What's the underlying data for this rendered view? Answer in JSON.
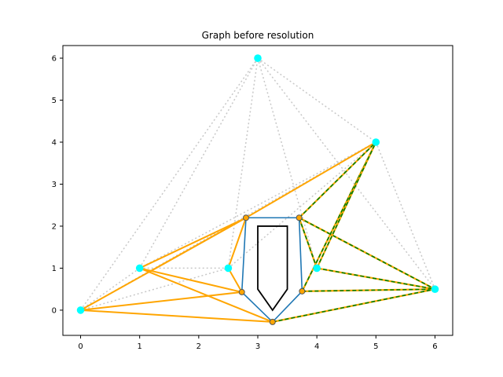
{
  "chart_data": {
    "type": "scatter",
    "title": "Graph before resolution",
    "xlabel": "",
    "ylabel": "",
    "xlim": [
      -0.3,
      6.3
    ],
    "ylim": [
      -0.6,
      6.3
    ],
    "xticks": [
      0,
      1,
      2,
      3,
      4,
      5,
      6
    ],
    "yticks": [
      0,
      1,
      2,
      3,
      4,
      5,
      6
    ],
    "grid": false,
    "colors": {
      "node": "#00ffff",
      "hull_node": "#1f77b4",
      "dotted_edge": "#c8c8c8",
      "orange_edge": "#ffa500",
      "green_edge": "#008000",
      "hull": "#1f77b4",
      "obstacle": "#000000"
    },
    "nodes": [
      {
        "x": 0,
        "y": 0
      },
      {
        "x": 1,
        "y": 1
      },
      {
        "x": 2.5,
        "y": 1
      },
      {
        "x": 3,
        "y": 6
      },
      {
        "x": 4,
        "y": 1
      },
      {
        "x": 5,
        "y": 4
      },
      {
        "x": 6,
        "y": 0.5
      }
    ],
    "hull_vertices": [
      {
        "x": 2.8,
        "y": 2.2
      },
      {
        "x": 3.7,
        "y": 2.2
      },
      {
        "x": 3.75,
        "y": 0.45
      },
      {
        "x": 3.25,
        "y": -0.28
      },
      {
        "x": 2.73,
        "y": 0.43
      }
    ],
    "obstacle": [
      {
        "x": 3,
        "y": 2
      },
      {
        "x": 3.5,
        "y": 2
      },
      {
        "x": 3.5,
        "y": 0.5
      },
      {
        "x": 3.25,
        "y": 0
      },
      {
        "x": 3,
        "y": 0.5
      }
    ],
    "dotted_edges": [
      [
        [
          0,
          0
        ],
        [
          3,
          6
        ]
      ],
      [
        [
          0,
          0
        ],
        [
          5,
          4
        ]
      ],
      [
        [
          0,
          0
        ],
        [
          2.5,
          1
        ]
      ],
      [
        [
          0,
          0
        ],
        [
          1,
          1
        ]
      ],
      [
        [
          1,
          1
        ],
        [
          3,
          6
        ]
      ],
      [
        [
          1,
          1
        ],
        [
          2.5,
          1
        ]
      ],
      [
        [
          2.5,
          1
        ],
        [
          3,
          6
        ]
      ],
      [
        [
          2.5,
          1
        ],
        [
          5,
          4
        ]
      ],
      [
        [
          3,
          6
        ],
        [
          5,
          4
        ]
      ],
      [
        [
          3,
          6
        ],
        [
          6,
          0.5
        ]
      ],
      [
        [
          3,
          6
        ],
        [
          4,
          1
        ]
      ],
      [
        [
          4,
          1
        ],
        [
          5,
          4
        ]
      ],
      [
        [
          4,
          1
        ],
        [
          6,
          0.5
        ]
      ],
      [
        [
          5,
          4
        ],
        [
          6,
          0.5
        ]
      ],
      [
        [
          1,
          1
        ],
        [
          5,
          4
        ]
      ],
      [
        [
          2.5,
          1
        ],
        [
          2.8,
          2.2
        ]
      ],
      [
        [
          2.5,
          1
        ],
        [
          2.73,
          0.43
        ]
      ]
    ],
    "orange_edges": [
      [
        [
          0,
          0
        ],
        [
          2.8,
          2.2
        ]
      ],
      [
        [
          0,
          0
        ],
        [
          2.73,
          0.43
        ]
      ],
      [
        [
          0,
          0
        ],
        [
          3.25,
          -0.28
        ]
      ],
      [
        [
          1,
          1
        ],
        [
          2.8,
          2.2
        ]
      ],
      [
        [
          1,
          1
        ],
        [
          2.73,
          0.43
        ]
      ],
      [
        [
          1,
          1
        ],
        [
          3.25,
          -0.28
        ]
      ],
      [
        [
          1.15,
          0.9
        ],
        [
          2.8,
          2.2
        ]
      ],
      [
        [
          2.5,
          1
        ],
        [
          2.8,
          2.2
        ]
      ],
      [
        [
          2.5,
          1
        ],
        [
          2.73,
          0.43
        ]
      ],
      [
        [
          2.8,
          2.2
        ],
        [
          5,
          4
        ]
      ]
    ],
    "green_edges": [
      [
        [
          3.7,
          2.2
        ],
        [
          5,
          4
        ]
      ],
      [
        [
          3.7,
          2.2
        ],
        [
          4,
          1
        ]
      ],
      [
        [
          3.7,
          2.2
        ],
        [
          6,
          0.5
        ]
      ],
      [
        [
          3.75,
          0.45
        ],
        [
          5,
          4
        ]
      ],
      [
        [
          3.75,
          0.45
        ],
        [
          6,
          0.5
        ]
      ],
      [
        [
          3.25,
          -0.28
        ],
        [
          6,
          0.5
        ]
      ],
      [
        [
          4,
          1
        ],
        [
          5,
          4
        ]
      ],
      [
        [
          4,
          1
        ],
        [
          6,
          0.5
        ]
      ]
    ]
  }
}
